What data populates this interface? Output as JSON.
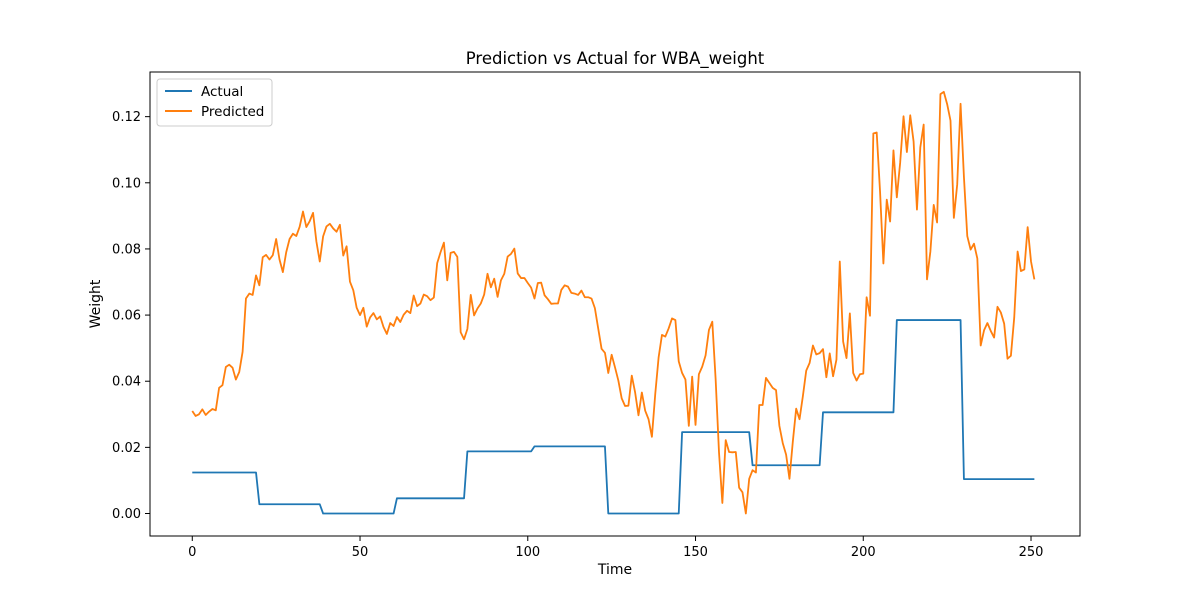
{
  "chart_data": {
    "type": "line",
    "title": "Prediction vs Actual for WBA_weight",
    "xlabel": "Time",
    "ylabel": "Weight",
    "xlim": [
      -12.6,
      264.6
    ],
    "ylim": [
      -0.0068,
      0.1335
    ],
    "xticks": [
      0,
      50,
      100,
      150,
      200,
      250
    ],
    "yticks": [
      0.0,
      0.02,
      0.04,
      0.06,
      0.08,
      0.1,
      0.12
    ],
    "ytick_labels": [
      "0.00",
      "0.02",
      "0.04",
      "0.06",
      "0.08",
      "0.10",
      "0.12"
    ],
    "grid": false,
    "legend": "top-left",
    "series": [
      {
        "name": "Actual",
        "color": "#1f77b4",
        "segments": [
          {
            "from": 0,
            "to": 19,
            "value": 0.0124
          },
          {
            "from": 20,
            "to": 38,
            "value": 0.0028
          },
          {
            "from": 39,
            "to": 60,
            "value": 0.0
          },
          {
            "from": 61,
            "to": 81,
            "value": 0.0046
          },
          {
            "from": 82,
            "to": 101,
            "value": 0.0188
          },
          {
            "from": 102,
            "to": 123,
            "value": 0.0203
          },
          {
            "from": 124,
            "to": 145,
            "value": 0.0
          },
          {
            "from": 146,
            "to": 166,
            "value": 0.0246
          },
          {
            "from": 167,
            "to": 187,
            "value": 0.0146
          },
          {
            "from": 188,
            "to": 209,
            "value": 0.0306
          },
          {
            "from": 210,
            "to": 229,
            "value": 0.0585
          },
          {
            "from": 230,
            "to": 251,
            "value": 0.0104
          }
        ]
      },
      {
        "name": "Predicted",
        "color": "#ff7f0e",
        "x": [
          0,
          1,
          2,
          3,
          4,
          5,
          6,
          7,
          8,
          9,
          10,
          11,
          12,
          13,
          14,
          15,
          16,
          17,
          18,
          19,
          20,
          21,
          22,
          23,
          24,
          25,
          26,
          27,
          28,
          29,
          30,
          31,
          32,
          33,
          34,
          35,
          36,
          37,
          38,
          39,
          40,
          41,
          42,
          43,
          44,
          45,
          46,
          47,
          48,
          49,
          50,
          51,
          52,
          53,
          54,
          55,
          56,
          57,
          58,
          59,
          60,
          61,
          62,
          63,
          64,
          65,
          66,
          67,
          68,
          69,
          70,
          71,
          72,
          73,
          74,
          75,
          76,
          77,
          78,
          79,
          80,
          81,
          82,
          83,
          84,
          85,
          86,
          87,
          88,
          89,
          90,
          91,
          92,
          93,
          94,
          95,
          96,
          97,
          98,
          99,
          100,
          101,
          102,
          103,
          104,
          105,
          106,
          107,
          108,
          109,
          110,
          111,
          112,
          113,
          114,
          115,
          116,
          117,
          118,
          119,
          120,
          121,
          122,
          123,
          124,
          125,
          126,
          127,
          128,
          129,
          130,
          131,
          132,
          133,
          134,
          135,
          136,
          137,
          138,
          139,
          140,
          141,
          142,
          143,
          144,
          145,
          146,
          147,
          148,
          149,
          150,
          151,
          152,
          153,
          154,
          155,
          156,
          157,
          158,
          159,
          160,
          161,
          162,
          163,
          164,
          165,
          166,
          167,
          168,
          169,
          170,
          171,
          172,
          173,
          174,
          175,
          176,
          177,
          178,
          179,
          180,
          181,
          182,
          183,
          184,
          185,
          186,
          187,
          188,
          189,
          190,
          191,
          192,
          193,
          194,
          195,
          196,
          197,
          198,
          199,
          200,
          201,
          202,
          203,
          204,
          205,
          206,
          207,
          208,
          209,
          210,
          211,
          212,
          213,
          214,
          215,
          216,
          217,
          218,
          219,
          220,
          221,
          222,
          223,
          224,
          225,
          226,
          227,
          228,
          229,
          230,
          231,
          232,
          233,
          234,
          235,
          236,
          237,
          238,
          239,
          240,
          241,
          242,
          243,
          244,
          245,
          246,
          247,
          248,
          249,
          250,
          251
        ],
        "values": [
          0.031,
          0.0295,
          0.03,
          0.0315,
          0.0298,
          0.0308,
          0.0316,
          0.0312,
          0.038,
          0.0388,
          0.0443,
          0.045,
          0.0441,
          0.0405,
          0.0428,
          0.0489,
          0.065,
          0.0665,
          0.0661,
          0.072,
          0.069,
          0.0775,
          0.0782,
          0.0768,
          0.0781,
          0.083,
          0.0768,
          0.073,
          0.079,
          0.083,
          0.0846,
          0.0839,
          0.0867,
          0.0913,
          0.0866,
          0.0884,
          0.0909,
          0.0822,
          0.0762,
          0.0838,
          0.0868,
          0.0876,
          0.0862,
          0.0852,
          0.0873,
          0.078,
          0.0808,
          0.0701,
          0.0675,
          0.0622,
          0.06,
          0.0622,
          0.0565,
          0.0593,
          0.0606,
          0.0587,
          0.0596,
          0.0564,
          0.0543,
          0.0576,
          0.0567,
          0.0594,
          0.0579,
          0.0601,
          0.0613,
          0.0606,
          0.0659,
          0.0627,
          0.0635,
          0.0662,
          0.0657,
          0.0645,
          0.0653,
          0.0757,
          0.079,
          0.0819,
          0.0705,
          0.0788,
          0.0791,
          0.0776,
          0.0548,
          0.0527,
          0.0558,
          0.0661,
          0.0599,
          0.062,
          0.0635,
          0.0662,
          0.0725,
          0.0684,
          0.071,
          0.0655,
          0.0705,
          0.0725,
          0.0777,
          0.0785,
          0.0801,
          0.0726,
          0.0712,
          0.0712,
          0.0697,
          0.0683,
          0.065,
          0.0697,
          0.0698,
          0.066,
          0.0648,
          0.0634,
          0.0635,
          0.0635,
          0.0676,
          0.069,
          0.0686,
          0.0667,
          0.0665,
          0.0661,
          0.0674,
          0.0654,
          0.0654,
          0.065,
          0.0621,
          0.0559,
          0.0498,
          0.0486,
          0.0425,
          0.048,
          0.0442,
          0.0402,
          0.0348,
          0.0325,
          0.0326,
          0.0417,
          0.0366,
          0.0297,
          0.0366,
          0.0311,
          0.0285,
          0.0232,
          0.0362,
          0.0472,
          0.054,
          0.0535,
          0.056,
          0.059,
          0.0585,
          0.046,
          0.0425,
          0.0405,
          0.0265,
          0.0414,
          0.0268,
          0.0421,
          0.0444,
          0.0478,
          0.0555,
          0.058,
          0.0405,
          0.0185,
          0.0032,
          0.0222,
          0.0186,
          0.0185,
          0.0186,
          0.0078,
          0.0064,
          0.0,
          0.0105,
          0.0131,
          0.0124,
          0.0328,
          0.0328,
          0.041,
          0.0395,
          0.038,
          0.0373,
          0.0265,
          0.0213,
          0.0178,
          0.0105,
          0.0217,
          0.0317,
          0.0285,
          0.0355,
          0.0432,
          0.0455,
          0.0508,
          0.0481,
          0.0485,
          0.0497,
          0.0412,
          0.0484,
          0.0415,
          0.0465,
          0.0762,
          0.052,
          0.047,
          0.0605,
          0.0425,
          0.0402,
          0.0421,
          0.0423,
          0.0654,
          0.0598,
          0.1149,
          0.1152,
          0.0974,
          0.0756,
          0.0949,
          0.0883,
          0.1098,
          0.0956,
          0.1061,
          0.1201,
          0.1093,
          0.1204,
          0.1125,
          0.0919,
          0.1107,
          0.1176,
          0.0708,
          0.0792,
          0.0933,
          0.088,
          0.1268,
          0.1275,
          0.1238,
          0.1188,
          0.0894,
          0.0995,
          0.1239,
          0.1018,
          0.0839,
          0.0798,
          0.0816,
          0.0771,
          0.0508,
          0.0554,
          0.0576,
          0.0552,
          0.0532,
          0.0625,
          0.0608,
          0.0574,
          0.0468,
          0.0477,
          0.0593,
          0.0792,
          0.0733,
          0.0738,
          0.0866,
          0.0762,
          0.0708
        ]
      }
    ]
  }
}
